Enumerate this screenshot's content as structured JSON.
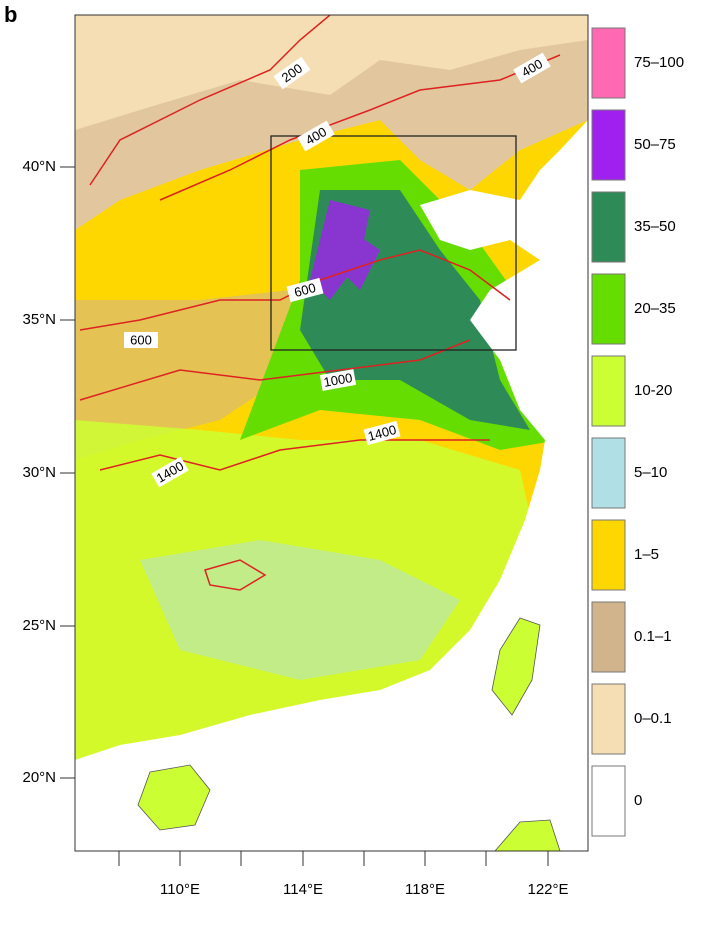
{
  "panel_label": "b",
  "map": {
    "lat_labels": [
      "40°N",
      "35°N",
      "30°N",
      "25°N",
      "20°N"
    ],
    "lon_labels": [
      "110°E",
      "114°E",
      "118°E",
      "122°E"
    ],
    "contour_labels": [
      "200",
      "400",
      "400",
      "600",
      "600",
      "1000",
      "1400",
      "1400"
    ]
  },
  "legend": [
    {
      "label": "75–100",
      "color": "#ff69b4"
    },
    {
      "label": "50–75",
      "color": "#a020f0"
    },
    {
      "label": "35–50",
      "color": "#2e8b57"
    },
    {
      "label": "20–35",
      "color": "#66dd00"
    },
    {
      "label": "10-20",
      "color": "#ccff33"
    },
    {
      "label": "5–10",
      "color": "#b0e0e6"
    },
    {
      "label": "1–5",
      "color": "#ffd700"
    },
    {
      "label": "0.1–1",
      "color": "#d2b48c"
    },
    {
      "label": "0–0.1",
      "color": "#f5deb3"
    },
    {
      "label": "0",
      "color": "#ffffff"
    }
  ]
}
